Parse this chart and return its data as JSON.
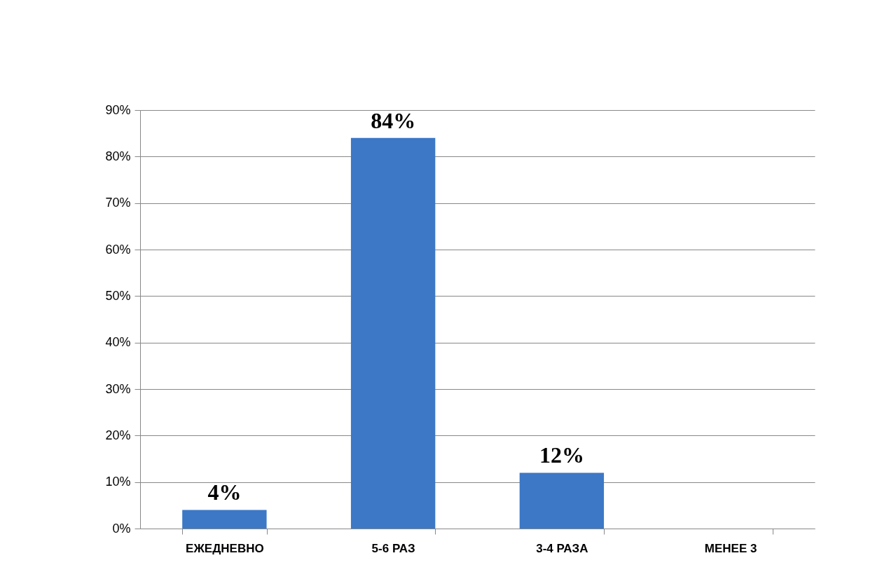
{
  "chart_data": {
    "type": "bar",
    "categories": [
      "ЕЖЕДНЕВНО",
      "5-6 РАЗ",
      "3-4 РАЗА",
      "МЕНЕЕ 3"
    ],
    "values": [
      4,
      84,
      12,
      0
    ],
    "color": "#3c78c6",
    "value_labels": [
      "4%",
      "84%",
      "12%",
      null
    ],
    "ylim": [
      0,
      90
    ],
    "yticks": [
      {
        "value": 0,
        "label": "0%"
      },
      {
        "value": 10,
        "label": "10%"
      },
      {
        "value": 20,
        "label": "20%"
      },
      {
        "value": 30,
        "label": "30%"
      },
      {
        "value": 40,
        "label": "40%"
      },
      {
        "value": 50,
        "label": "50%"
      },
      {
        "value": 60,
        "label": "60%"
      },
      {
        "value": 70,
        "label": "70%"
      },
      {
        "value": 80,
        "label": "80%"
      },
      {
        "value": 90,
        "label": "90%"
      }
    ],
    "grid": "y"
  }
}
